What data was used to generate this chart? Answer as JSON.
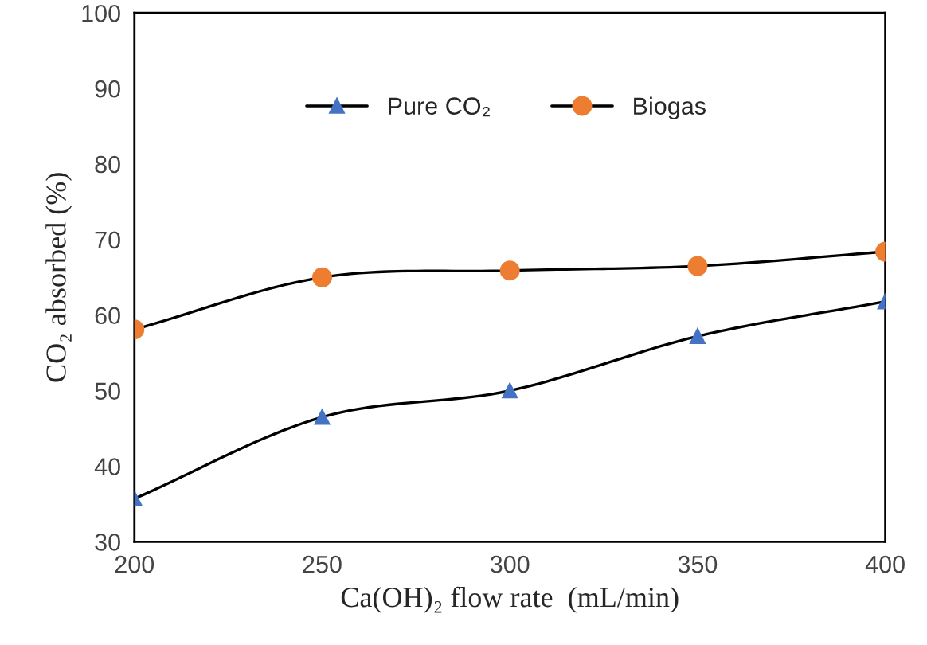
{
  "chart_data": {
    "type": "line",
    "xlabel": "Ca(OH)₂ flow rate  (mL/min)",
    "ylabel": "CO₂ absorbed (%)",
    "x": [
      200,
      250,
      300,
      350,
      400
    ],
    "series": [
      {
        "name": "Pure CO₂",
        "color": "#4472c4",
        "marker": "triangle",
        "values": [
          35.7,
          46.5,
          50,
          57.2,
          61.8
        ]
      },
      {
        "name": "Biogas",
        "color": "#ed7d31",
        "marker": "circle",
        "values": [
          58.1,
          65,
          65.9,
          66.5,
          68.4
        ]
      }
    ],
    "xlim": [
      200,
      400
    ],
    "xticks": [
      200,
      250,
      300,
      350,
      400
    ],
    "ylim": [
      30,
      100
    ],
    "yticks": [
      30,
      40,
      50,
      60,
      70,
      80,
      90,
      100
    ],
    "grid": false,
    "legend": "top left",
    "line_style": "solid"
  }
}
